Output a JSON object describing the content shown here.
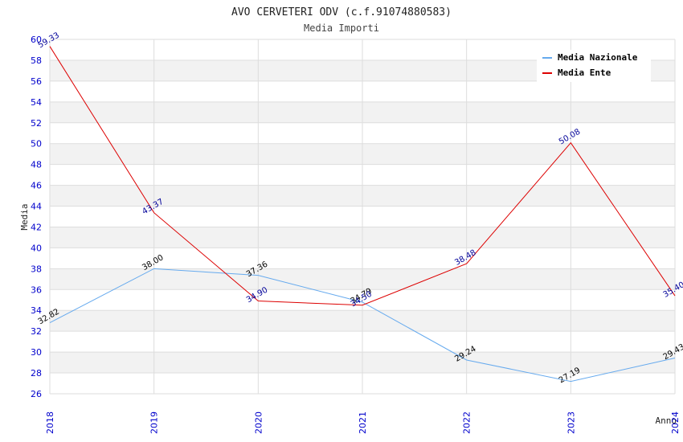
{
  "chart_data": {
    "type": "line",
    "title": "AVO CERVETERI ODV (c.f.91074880583)",
    "subtitle": "Media Importi",
    "xlabel": "Anno",
    "ylabel": "Media",
    "categories": [
      "2018",
      "2019",
      "2020",
      "2021",
      "2022",
      "2023",
      "2024"
    ],
    "ylim": [
      26,
      60
    ],
    "ytick_step": 2,
    "grid": true,
    "legend_position": "top-right",
    "series": [
      {
        "name": "Media Nazionale",
        "color": "#66aaee",
        "label_color": "#000000",
        "values": [
          32.82,
          38.0,
          37.36,
          34.79,
          29.24,
          27.19,
          29.43
        ],
        "labels": [
          "32.82",
          "38.00",
          "37.36",
          "34.79",
          "29.24",
          "27.19",
          "29.43"
        ]
      },
      {
        "name": "Media Ente",
        "color": "#dd0000",
        "label_color": "#000099",
        "values": [
          59.33,
          43.37,
          34.9,
          34.5,
          38.48,
          50.08,
          35.4
        ],
        "labels": [
          "59.33",
          "43.37",
          "34.90",
          "34.50",
          "38.48",
          "50.08",
          "35.40"
        ]
      }
    ]
  }
}
